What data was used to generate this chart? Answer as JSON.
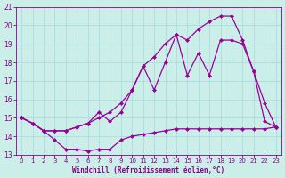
{
  "background_color": "#cceee8",
  "grid_color": "#aadddd",
  "line_color": "#990099",
  "marker_color": "#990099",
  "xlabel": "Windchill (Refroidissement éolien,°C)",
  "xlabel_color": "#880088",
  "tick_color": "#880088",
  "xlim": [
    -0.5,
    23.5
  ],
  "ylim": [
    13,
    21
  ],
  "yticks": [
    13,
    14,
    15,
    16,
    17,
    18,
    19,
    20,
    21
  ],
  "xticks": [
    0,
    1,
    2,
    3,
    4,
    5,
    6,
    7,
    8,
    9,
    10,
    11,
    12,
    13,
    14,
    15,
    16,
    17,
    18,
    19,
    20,
    21,
    22,
    23
  ],
  "series1_x": [
    0,
    1,
    2,
    3,
    4,
    5,
    6,
    7,
    8,
    9,
    10,
    11,
    12,
    13,
    14,
    15,
    16,
    17,
    18,
    19,
    20,
    21,
    22,
    23
  ],
  "series1_y": [
    15.0,
    14.7,
    14.3,
    13.8,
    13.3,
    13.3,
    13.2,
    13.3,
    13.3,
    13.8,
    14.0,
    14.1,
    14.2,
    14.3,
    14.4,
    14.4,
    14.4,
    14.4,
    14.4,
    14.4,
    14.4,
    14.4,
    14.4,
    14.5
  ],
  "series2_x": [
    0,
    1,
    2,
    3,
    4,
    5,
    6,
    7,
    8,
    9,
    10,
    11,
    12,
    13,
    14,
    15,
    16,
    17,
    18,
    19,
    20,
    21,
    22,
    23
  ],
  "series2_y": [
    15.0,
    14.7,
    14.3,
    14.3,
    14.3,
    14.5,
    14.7,
    15.3,
    14.8,
    15.3,
    16.5,
    17.8,
    16.5,
    18.0,
    19.5,
    17.3,
    18.5,
    17.3,
    19.2,
    19.2,
    19.0,
    17.5,
    14.8,
    14.5
  ],
  "series3_x": [
    0,
    1,
    2,
    3,
    4,
    5,
    6,
    7,
    8,
    9,
    10,
    11,
    12,
    13,
    14,
    15,
    16,
    17,
    18,
    19,
    20,
    21,
    22,
    23
  ],
  "series3_y": [
    15.0,
    14.7,
    14.3,
    14.3,
    14.3,
    14.5,
    14.7,
    15.0,
    15.3,
    15.8,
    16.5,
    17.8,
    18.3,
    19.0,
    19.5,
    19.2,
    19.8,
    20.2,
    20.5,
    20.5,
    19.2,
    17.5,
    15.8,
    14.5
  ],
  "figsize": [
    3.2,
    2.0
  ],
  "dpi": 100
}
